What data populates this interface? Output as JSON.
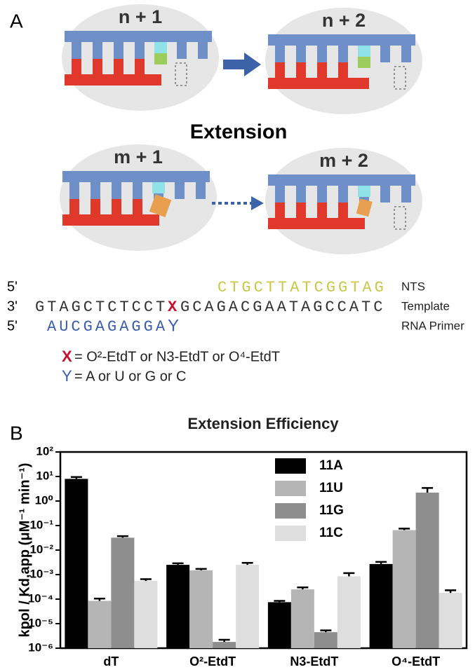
{
  "panel_a": {
    "label": "A",
    "states": [
      "n + 1",
      "n + 2",
      "m + 1",
      "m + 2"
    ],
    "heading": "Extension",
    "sequence": {
      "nts": {
        "end": "5'",
        "seq": "CTGCTTATCGGTAG",
        "name": "NTS"
      },
      "template": {
        "end": "3'",
        "seq_left": "GTAGCTCTCCT",
        "mark": "X",
        "seq_right": "GCAGACGAATAGCCATC",
        "name": "Template"
      },
      "primer": {
        "end": "5'",
        "seq": "AUCGAGAGGA",
        "mark": "Y",
        "name": "RNA Primer"
      }
    },
    "key": [
      {
        "symbol": "X",
        "text": " = O²-EtdT or N3-EtdT or O⁴-EtdT"
      },
      {
        "symbol": "Y",
        "text": " = A or U or G or C"
      }
    ]
  },
  "chart_data": {
    "type": "bar",
    "panel_label": "B",
    "title": "Extension Efficiency",
    "y_label": "kpol / Kd,app (μM⁻¹ min⁻¹)",
    "log_y": true,
    "categories": [
      "dT",
      "O²-EtdT",
      "N3-EtdT",
      "O⁴-EtdT"
    ],
    "series": [
      {
        "name": "11A",
        "color": "#000000",
        "values": [
          8,
          0.0025,
          7.5e-05,
          0.0027
        ],
        "errors": [
          1.5,
          0.0004,
          1e-05,
          0.0006
        ]
      },
      {
        "name": "11U",
        "color": "#b5b5b5",
        "values": [
          8.5e-05,
          0.0015,
          0.00025,
          0.065
        ],
        "errors": [
          2e-05,
          0.0002,
          5e-05,
          0.01
        ]
      },
      {
        "name": "11G",
        "color": "#8e8e8e",
        "values": [
          0.032,
          1.8e-06,
          4.5e-06,
          2.2
        ],
        "errors": [
          0.005,
          4e-07,
          8e-07,
          1.2
        ]
      },
      {
        "name": "11C",
        "color": "#dedede",
        "values": [
          0.00055,
          0.0025,
          0.00085,
          0.00018
        ],
        "errors": [
          0.0001,
          0.0005,
          0.0003,
          5e-05
        ]
      }
    ],
    "ylim": [
      1e-06,
      100
    ],
    "yticks": [
      {
        "value": 100,
        "label": "10²"
      },
      {
        "value": 10,
        "label": "10¹"
      },
      {
        "value": 1,
        "label": "10⁰"
      },
      {
        "value": 0.1,
        "label": "10⁻¹"
      },
      {
        "value": 0.01,
        "label": "10⁻²"
      },
      {
        "value": 0.001,
        "label": "10⁻³"
      },
      {
        "value": 0.0001,
        "label": "10⁻⁴"
      },
      {
        "value": 1e-05,
        "label": "10⁻⁵"
      },
      {
        "value": 1e-06,
        "label": "10⁻⁶"
      }
    ],
    "grid": false,
    "legend": "top-right"
  }
}
